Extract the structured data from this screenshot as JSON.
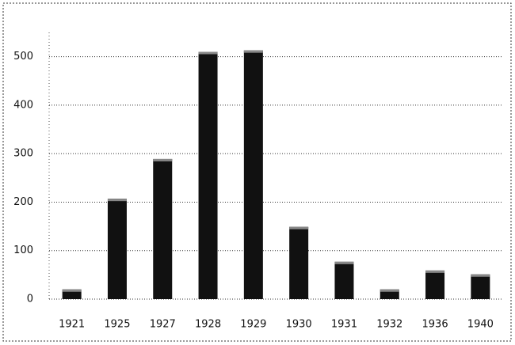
{
  "chart_data": {
    "type": "bar",
    "categories": [
      "1921",
      "1925",
      "1927",
      "1928",
      "1929",
      "1930",
      "1931",
      "1932",
      "1936",
      "1940"
    ],
    "values": [
      20,
      207,
      289,
      510,
      513,
      149,
      77,
      20,
      59,
      51
    ],
    "color": "#111111",
    "ylim": [
      0,
      550
    ],
    "yticks": [
      0,
      100,
      200,
      300,
      400,
      500
    ],
    "grid": true
  }
}
